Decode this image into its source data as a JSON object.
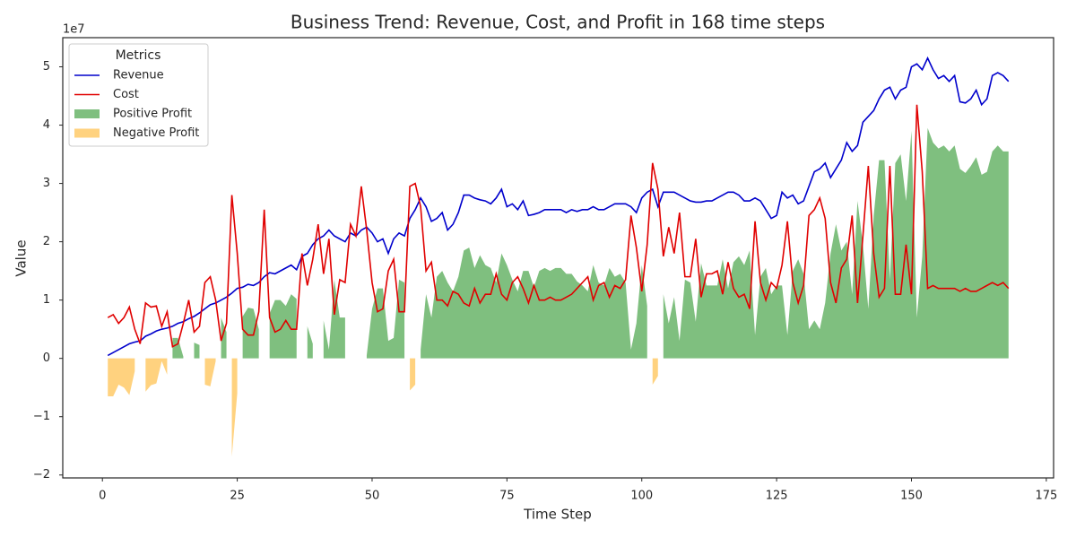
{
  "chart_data": {
    "type": "line",
    "title": "Business Trend: Revenue, Cost, and Profit in 168 time steps",
    "x_label": "Time Step",
    "y_label": "Value",
    "y_offset_label": "1e7",
    "legend_title": "Metrics",
    "legend": "upper left",
    "xlim": [
      -7.35,
      176.35
    ],
    "xticks": [
      0,
      25,
      50,
      75,
      100,
      125,
      150,
      175
    ],
    "ylim": [
      -2.05,
      5.5
    ],
    "yticks": [
      {
        "value": -2,
        "label": "−2"
      },
      {
        "value": -1,
        "label": "−1"
      },
      0,
      1,
      2,
      3,
      4,
      5
    ],
    "x_start": 1,
    "series": [
      {
        "name": "Revenue",
        "color": "#0000cc",
        "values": [
          0.05,
          0.1,
          0.15,
          0.2,
          0.25,
          0.28,
          0.3,
          0.38,
          0.42,
          0.47,
          0.5,
          0.52,
          0.55,
          0.6,
          0.63,
          0.68,
          0.72,
          0.78,
          0.85,
          0.92,
          0.95,
          1.0,
          1.05,
          1.12,
          1.2,
          1.22,
          1.27,
          1.25,
          1.3,
          1.4,
          1.47,
          1.45,
          1.5,
          1.55,
          1.6,
          1.52,
          1.75,
          1.8,
          1.95,
          2.05,
          2.1,
          2.2,
          2.1,
          2.05,
          2.0,
          2.15,
          2.1,
          2.2,
          2.25,
          2.15,
          2.0,
          2.05,
          1.8,
          2.05,
          2.15,
          2.1,
          2.4,
          2.55,
          2.75,
          2.6,
          2.35,
          2.4,
          2.5,
          2.2,
          2.3,
          2.5,
          2.8,
          2.8,
          2.75,
          2.72,
          2.7,
          2.65,
          2.75,
          2.9,
          2.6,
          2.65,
          2.55,
          2.7,
          2.45,
          2.47,
          2.5,
          2.55,
          2.55,
          2.55,
          2.55,
          2.5,
          2.55,
          2.52,
          2.55,
          2.55,
          2.6,
          2.55,
          2.55,
          2.6,
          2.65,
          2.65,
          2.65,
          2.6,
          2.5,
          2.75,
          2.85,
          2.9,
          2.6,
          2.85,
          2.85,
          2.85,
          2.8,
          2.75,
          2.7,
          2.68,
          2.68,
          2.7,
          2.7,
          2.75,
          2.8,
          2.85,
          2.85,
          2.8,
          2.7,
          2.7,
          2.75,
          2.7,
          2.55,
          2.4,
          2.45,
          2.85,
          2.75,
          2.8,
          2.65,
          2.7,
          2.95,
          3.2,
          3.25,
          3.35,
          3.1,
          3.25,
          3.4,
          3.7,
          3.55,
          3.65,
          4.05,
          4.15,
          4.25,
          4.45,
          4.6,
          4.65,
          4.45,
          4.6,
          4.65,
          5.0,
          5.05,
          4.95,
          5.15,
          4.95,
          4.8,
          4.85,
          4.75,
          4.85,
          4.4,
          4.38,
          4.45,
          4.6,
          4.35,
          4.45,
          4.85,
          4.9,
          4.85,
          4.75
        ]
      },
      {
        "name": "Cost",
        "color": "#e00000",
        "values": [
          0.7,
          0.75,
          0.6,
          0.7,
          0.88,
          0.5,
          0.25,
          0.95,
          0.88,
          0.9,
          0.55,
          0.8,
          0.2,
          0.25,
          0.6,
          1.0,
          0.45,
          0.55,
          1.3,
          1.4,
          1.0,
          0.3,
          0.6,
          2.8,
          1.8,
          0.5,
          0.4,
          0.4,
          0.8,
          2.55,
          0.7,
          0.45,
          0.5,
          0.65,
          0.5,
          0.5,
          1.8,
          1.25,
          1.7,
          2.3,
          1.45,
          2.05,
          0.75,
          1.35,
          1.3,
          2.3,
          2.1,
          2.95,
          2.2,
          1.3,
          0.8,
          0.85,
          1.5,
          1.7,
          0.8,
          0.8,
          2.95,
          3.0,
          2.6,
          1.5,
          1.65,
          1.0,
          1.0,
          0.9,
          1.15,
          1.1,
          0.95,
          0.9,
          1.2,
          0.95,
          1.1,
          1.1,
          1.45,
          1.1,
          1.0,
          1.3,
          1.4,
          1.2,
          0.95,
          1.25,
          1.0,
          1.0,
          1.05,
          1.0,
          1.0,
          1.05,
          1.1,
          1.2,
          1.3,
          1.4,
          1.0,
          1.25,
          1.3,
          1.05,
          1.25,
          1.2,
          1.35,
          2.45,
          1.9,
          1.15,
          1.95,
          3.35,
          2.9,
          1.75,
          2.25,
          1.8,
          2.5,
          1.4,
          1.4,
          2.05,
          1.05,
          1.45,
          1.45,
          1.5,
          1.1,
          1.65,
          1.2,
          1.05,
          1.1,
          0.85,
          2.35,
          1.3,
          1.0,
          1.3,
          1.2,
          1.6,
          2.35,
          1.3,
          0.95,
          1.25,
          2.45,
          2.55,
          2.75,
          2.4,
          1.3,
          0.95,
          1.55,
          1.7,
          2.45,
          0.95,
          2.1,
          3.3,
          1.8,
          1.05,
          1.2,
          3.3,
          1.1,
          1.1,
          1.95,
          1.1,
          4.35,
          3.2,
          1.2,
          1.25,
          1.2,
          1.2,
          1.2,
          1.2,
          1.15,
          1.2,
          1.15,
          1.15,
          1.2,
          1.25,
          1.3,
          1.25,
          1.3,
          1.2
        ]
      }
    ],
    "fills": [
      {
        "name": "Positive Profit",
        "color": "#008000"
      },
      {
        "name": "Negative Profit",
        "color": "#ffa500"
      }
    ],
    "fill_alpha": 0.5
  }
}
